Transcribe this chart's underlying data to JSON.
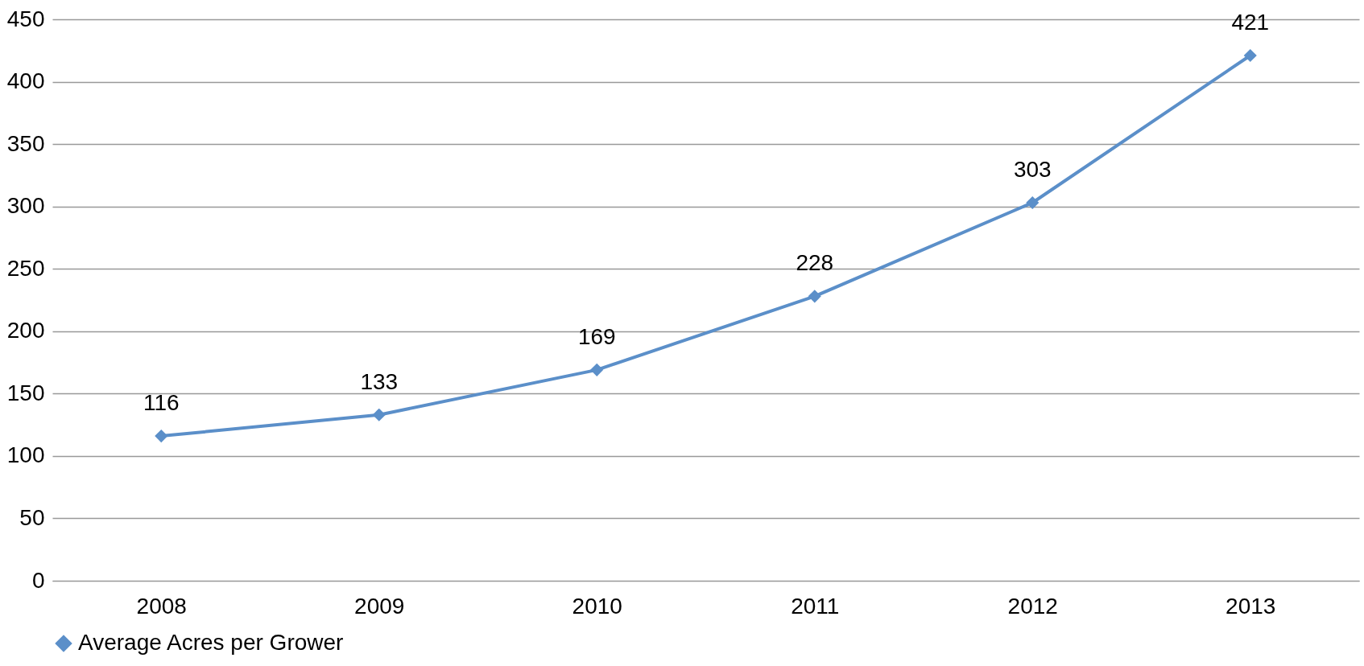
{
  "chart_data": {
    "type": "line",
    "categories": [
      "2008",
      "2009",
      "2010",
      "2011",
      "2012",
      "2013"
    ],
    "series": [
      {
        "name": "Average Acres per Grower",
        "color": "#5b8fc9",
        "values": [
          116,
          133,
          169,
          228,
          303,
          421
        ]
      }
    ],
    "ylim": [
      0,
      450
    ],
    "yticks": [
      0,
      50,
      100,
      150,
      200,
      250,
      300,
      350,
      400,
      450
    ],
    "grid": "y",
    "legend": "bottom",
    "marker": "diamond",
    "line_style": "solid",
    "data_labels": true
  }
}
